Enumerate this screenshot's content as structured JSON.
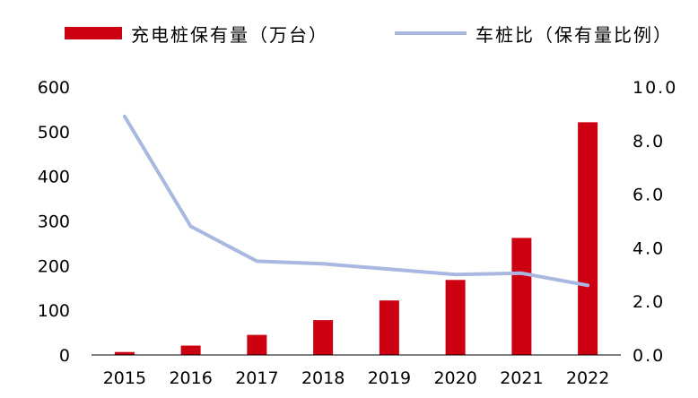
{
  "chart_data": {
    "type": "bar",
    "categories": [
      "2015",
      "2016",
      "2017",
      "2018",
      "2019",
      "2020",
      "2021",
      "2022"
    ],
    "series": [
      {
        "name": "充电桩保有量（万台）",
        "type": "bar",
        "axis": "left",
        "color": "#CC0011",
        "values": [
          6.6,
          21,
          45,
          78,
          122,
          168,
          262,
          521
        ]
      },
      {
        "name": "车桩比（保有量比例）",
        "type": "line",
        "axis": "right",
        "color": "#A8B8E0",
        "values": [
          8.9,
          4.8,
          3.5,
          3.4,
          3.2,
          3.0,
          3.05,
          2.6
        ]
      }
    ],
    "y_left": {
      "ticks": [
        "600",
        "500",
        "400",
        "300",
        "200",
        "100",
        "0"
      ],
      "ylim": [
        0,
        600
      ]
    },
    "y_right": {
      "ticks": [
        "10.0",
        "8.0",
        "6.0",
        "4.0",
        "2.0",
        "0.0"
      ],
      "ylim": [
        0,
        10
      ]
    },
    "legend_position": "top",
    "grid": false
  }
}
